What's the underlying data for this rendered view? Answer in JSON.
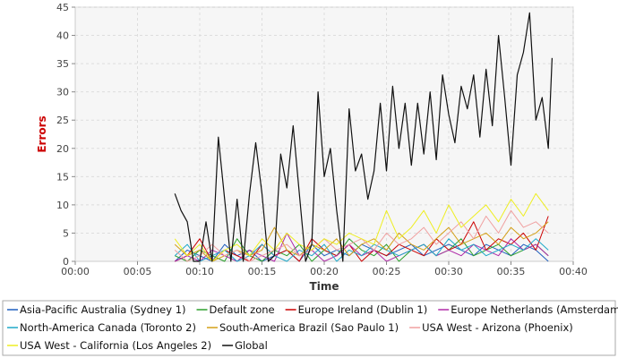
{
  "chart_data": {
    "type": "line",
    "title": "",
    "xlabel": "Time",
    "ylabel": "Errors",
    "ylabel_color": "#cc0000",
    "xlim": [
      0,
      40
    ],
    "ylim": [
      0,
      45
    ],
    "x_ticks": [
      "00:00",
      "00:05",
      "00:10",
      "00:15",
      "00:20",
      "00:25",
      "00:30",
      "00:35",
      "00:40"
    ],
    "y_ticks": [
      0,
      5,
      10,
      15,
      20,
      25,
      30,
      35,
      40,
      45
    ],
    "grid": true,
    "legend": "bottom",
    "series": [
      {
        "name": "Asia-Pacific Australia (Sydney 1)",
        "color": "#1f5fbf",
        "x": [
          8,
          9,
          10,
          11,
          12,
          13,
          14,
          15,
          16,
          17,
          18,
          19,
          20,
          21,
          22,
          23,
          24,
          25,
          26,
          27,
          28,
          29,
          30,
          31,
          32,
          33,
          34,
          35,
          36,
          37,
          38
        ],
        "y": [
          0,
          2,
          1,
          0,
          3,
          1,
          2,
          0,
          1,
          2,
          0,
          3,
          1,
          2,
          1,
          3,
          2,
          1,
          2,
          3,
          1,
          2,
          3,
          2,
          1,
          3,
          2,
          1,
          3,
          2,
          0
        ]
      },
      {
        "name": "Default zone",
        "color": "#2ca02c",
        "x": [
          8,
          9,
          10,
          11,
          12,
          13,
          14,
          15,
          16,
          17,
          18,
          19,
          20,
          21,
          22,
          23,
          24,
          25,
          26,
          27,
          28,
          29,
          30,
          31,
          32,
          33,
          34,
          35,
          36,
          37,
          38
        ],
        "y": [
          1,
          0,
          2,
          1,
          0,
          4,
          1,
          0,
          2,
          1,
          3,
          0,
          2,
          1,
          4,
          2,
          1,
          3,
          0,
          2,
          3,
          1,
          2,
          4,
          1,
          2,
          3,
          1,
          2,
          3,
          1
        ]
      },
      {
        "name": "Europe Ireland (Dublin 1)",
        "color": "#cc0000",
        "x": [
          8,
          9,
          10,
          11,
          12,
          13,
          14,
          15,
          16,
          17,
          18,
          19,
          20,
          21,
          22,
          23,
          24,
          25,
          26,
          27,
          28,
          29,
          30,
          31,
          32,
          33,
          34,
          35,
          36,
          37,
          38
        ],
        "y": [
          0,
          1,
          4,
          0,
          2,
          1,
          0,
          3,
          1,
          2,
          0,
          4,
          2,
          1,
          3,
          0,
          2,
          1,
          3,
          2,
          1,
          4,
          2,
          3,
          7,
          2,
          4,
          3,
          5,
          2,
          8
        ]
      },
      {
        "name": "Europe Netherlands (Amsterdam 2)",
        "color": "#b02aa8",
        "x": [
          8,
          9,
          10,
          11,
          12,
          13,
          14,
          15,
          16,
          17,
          18,
          19,
          20,
          21,
          22,
          23,
          24,
          25,
          26,
          27,
          28,
          29,
          30,
          31,
          32,
          33,
          34,
          35,
          36,
          37,
          38
        ],
        "y": [
          0,
          1,
          0,
          2,
          1,
          0,
          2,
          1,
          0,
          5,
          1,
          2,
          0,
          1,
          3,
          1,
          2,
          0,
          1,
          2,
          3,
          1,
          2,
          1,
          3,
          2,
          1,
          4,
          2,
          3,
          1
        ]
      },
      {
        "name": "North-America Canada (Toronto 2)",
        "color": "#1fa8c9",
        "x": [
          8,
          9,
          10,
          11,
          12,
          13,
          14,
          15,
          16,
          17,
          18,
          19,
          20,
          21,
          22,
          23,
          24,
          25,
          26,
          27,
          28,
          29,
          30,
          31,
          32,
          33,
          34,
          35,
          36,
          37,
          38
        ],
        "y": [
          1,
          3,
          0,
          1,
          2,
          0,
          1,
          3,
          1,
          0,
          2,
          1,
          3,
          0,
          2,
          1,
          3,
          2,
          1,
          2,
          3,
          1,
          4,
          2,
          3,
          1,
          2,
          3,
          2,
          4,
          2
        ]
      },
      {
        "name": "South-America Brazil (Sao Paulo 1)",
        "color": "#d4a017",
        "x": [
          8,
          9,
          10,
          11,
          12,
          13,
          14,
          15,
          16,
          17,
          18,
          19,
          20,
          21,
          22,
          23,
          24,
          25,
          26,
          27,
          28,
          29,
          30,
          31,
          32,
          33,
          34,
          35,
          36,
          37,
          38
        ],
        "y": [
          3,
          1,
          2,
          0,
          1,
          2,
          1,
          2,
          6,
          2,
          1,
          3,
          2,
          4,
          1,
          3,
          4,
          2,
          5,
          3,
          2,
          4,
          6,
          3,
          4,
          5,
          3,
          6,
          4,
          5,
          7
        ]
      },
      {
        "name": "USA West - Arizona (Phoenix)",
        "color": "#f0a0a0",
        "x": [
          8,
          9,
          10,
          11,
          12,
          13,
          14,
          15,
          16,
          17,
          18,
          19,
          20,
          21,
          22,
          23,
          24,
          25,
          26,
          27,
          28,
          29,
          30,
          31,
          32,
          33,
          34,
          35,
          36,
          37,
          38
        ],
        "y": [
          2,
          0,
          1,
          3,
          1,
          2,
          0,
          1,
          2,
          3,
          1,
          2,
          4,
          2,
          3,
          4,
          2,
          5,
          3,
          4,
          6,
          3,
          5,
          7,
          4,
          8,
          5,
          9,
          6,
          7,
          5
        ]
      },
      {
        "name": "USA West - California (Los Angeles 2)",
        "color": "#eeee22",
        "x": [
          8,
          9,
          10,
          11,
          12,
          13,
          14,
          15,
          16,
          17,
          18,
          19,
          20,
          21,
          22,
          23,
          24,
          25,
          26,
          27,
          28,
          29,
          30,
          31,
          32,
          33,
          34,
          35,
          36,
          37,
          38
        ],
        "y": [
          4,
          1,
          3,
          0,
          2,
          3,
          1,
          4,
          2,
          5,
          3,
          2,
          4,
          3,
          5,
          4,
          3,
          9,
          4,
          6,
          9,
          5,
          10,
          6,
          8,
          10,
          7,
          11,
          8,
          12,
          9
        ]
      },
      {
        "name": "Global",
        "color": "#111111",
        "x": [
          8,
          8.5,
          9,
          9.5,
          10,
          10.5,
          11,
          11.5,
          12,
          12.5,
          13,
          13.5,
          14,
          14.5,
          15,
          15.5,
          16,
          16.5,
          17,
          17.5,
          18,
          18.5,
          19,
          19.5,
          20,
          20.5,
          21,
          21.5,
          22,
          22.5,
          23,
          23.5,
          24,
          24.5,
          25,
          25.5,
          26,
          26.5,
          27,
          27.5,
          28,
          28.5,
          29,
          29.5,
          30,
          30.5,
          31,
          31.5,
          32,
          32.5,
          33,
          33.5,
          34,
          34.5,
          35,
          35.5,
          36,
          36.5,
          37,
          37.5,
          38,
          38.3
        ],
        "y": [
          12,
          9,
          7,
          0,
          0,
          7,
          0,
          22,
          11,
          0,
          11,
          0,
          12,
          21,
          12,
          0,
          1,
          19,
          13,
          24,
          12,
          0,
          3,
          30,
          15,
          20,
          9,
          0,
          27,
          16,
          19,
          11,
          16,
          28,
          16,
          31,
          20,
          28,
          17,
          28,
          19,
          30,
          18,
          33,
          26,
          21,
          31,
          27,
          33,
          22,
          34,
          24,
          40,
          29,
          17,
          33,
          37,
          44,
          25,
          29,
          20,
          36
        ]
      }
    ]
  }
}
